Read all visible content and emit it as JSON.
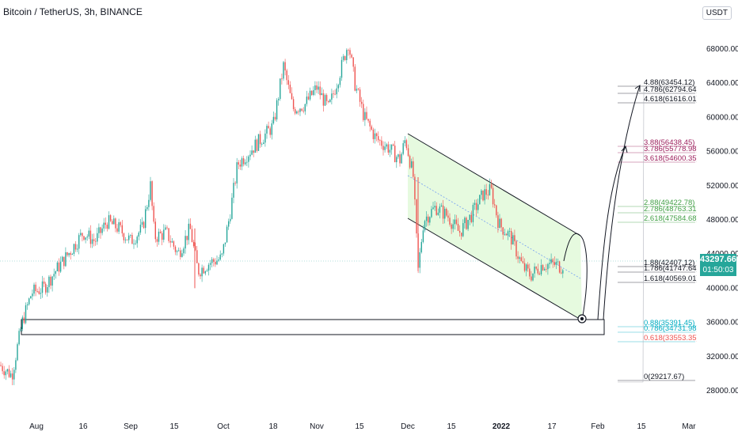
{
  "header": {
    "title": "Bitcoin / TetherUS, 3h, BINANCE",
    "currency": "USDT"
  },
  "price_axis": {
    "ticks": [
      "68000.00",
      "64000.00",
      "60000.00",
      "56000.00",
      "52000.00",
      "48000.00",
      "44000.00",
      "40000.00",
      "36000.00",
      "32000.00",
      "28000.00"
    ],
    "last_price": "43297.66",
    "countdown": "01:50:03"
  },
  "time_axis": {
    "ticks": [
      "Aug",
      "16",
      "Sep",
      "15",
      "Oct",
      "18",
      "Nov",
      "15",
      "Dec",
      "15",
      "2022",
      "17",
      "Feb",
      "15",
      "Mar"
    ]
  },
  "fib_labels": {
    "upper": [
      "4.88(63454.12)",
      "4.786(62794.64)",
      "4.618(61616.01)"
    ],
    "mid_upper": [
      "3.88(56438.45)",
      "3.786(55778.98)",
      "3.618(54600.35)"
    ],
    "mid": [
      "2.88(49422.78)",
      "2.786(48763.31)",
      "2.618(47584.68)"
    ],
    "near": [
      "1.88(42407.12)",
      "1.786(41747.64)",
      "1.618(40569.01)"
    ],
    "low": [
      "0.88(35391.45)",
      "0.786(34731.98)",
      "0.618(33553.35)"
    ],
    "base": [
      "0(29217.67)"
    ]
  },
  "colors": {
    "up": "#26a69a",
    "down": "#ef5350",
    "channel_fill": "#e3f9dc",
    "fib_upper": "#131722",
    "fib_mid_upper": "#9c1f5c",
    "fib_mid": "#43a047",
    "fib_near": "#131722",
    "fib_low_a": "#00acc1",
    "fib_low_b": "#ef5350"
  }
}
